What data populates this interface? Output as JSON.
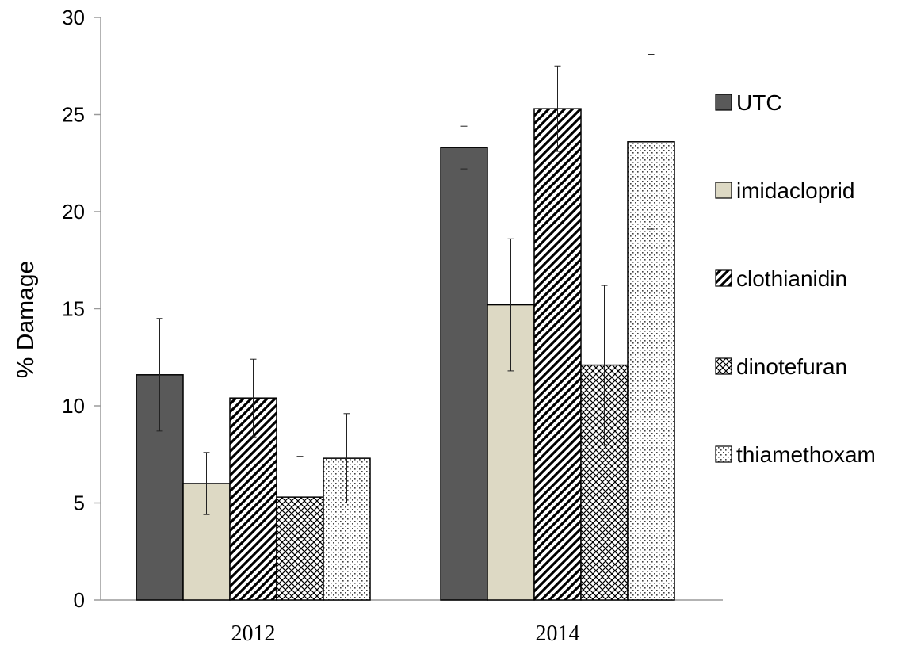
{
  "chart_data": {
    "type": "bar",
    "title": "",
    "xlabel": "",
    "ylabel": "% Damage",
    "ylim": [
      0,
      30
    ],
    "yticks": [
      0,
      5,
      10,
      15,
      20,
      25,
      30
    ],
    "categories": [
      "2012",
      "2014"
    ],
    "legend_position": "right",
    "grid": false,
    "series": [
      {
        "name": "UTC",
        "values": [
          11.6,
          23.3
        ],
        "errors": [
          2.9,
          1.1
        ],
        "color": "#595959",
        "pattern": "solid"
      },
      {
        "name": "imidacloprid",
        "values": [
          6.0,
          15.2
        ],
        "errors": [
          1.6,
          3.4
        ],
        "color": "#ddd9c4",
        "pattern": "solid"
      },
      {
        "name": "clothianidin",
        "values": [
          10.4,
          25.3
        ],
        "errors": [
          2.0,
          2.2
        ],
        "color": "#000000",
        "pattern": "diagonal"
      },
      {
        "name": "dinotefuran",
        "values": [
          5.3,
          12.1
        ],
        "errors": [
          2.1,
          4.1
        ],
        "color": "#000000",
        "pattern": "crosshatch"
      },
      {
        "name": "thiamethoxam",
        "values": [
          7.3,
          23.6
        ],
        "errors": [
          2.3,
          4.5
        ],
        "color": "#000000",
        "pattern": "dots"
      }
    ]
  }
}
